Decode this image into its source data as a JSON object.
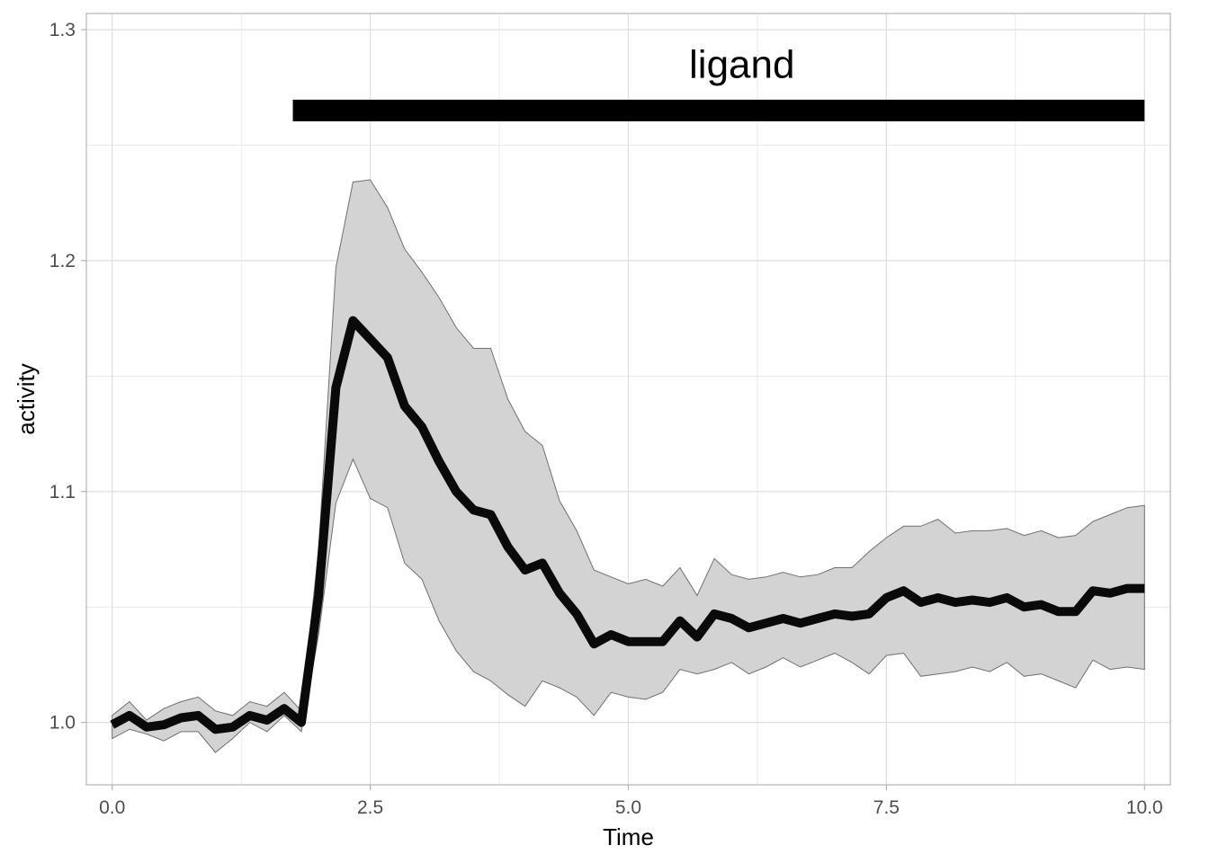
{
  "chart_data": {
    "type": "line",
    "title": "",
    "xlabel": "Time",
    "ylabel": "activity",
    "xlim": [
      -0.25,
      10.25
    ],
    "ylim": [
      0.973,
      1.307
    ],
    "x_ticks": [
      "0.0",
      "2.5",
      "5.0",
      "7.5",
      "10.0"
    ],
    "x_tick_values": [
      0,
      2.5,
      5,
      7.5,
      10
    ],
    "y_ticks": [
      "1.0",
      "1.1",
      "1.2",
      "1.3"
    ],
    "y_tick_values": [
      1.0,
      1.1,
      1.2,
      1.3
    ],
    "grid": true,
    "colors": {
      "line": "#0a0a0a",
      "ribbon": "#d3d3d3",
      "ribbon_edge": "#707070",
      "grid": "#dedede",
      "panel_border": "#b3b3b3"
    },
    "annotation": {
      "label": "ligand",
      "x": 6.1,
      "y": 1.285
    },
    "ligand_bar": {
      "x_start": 1.75,
      "x_end": 10.0,
      "y": 1.265
    },
    "series": [
      {
        "x": [
          0.0,
          0.167,
          0.333,
          0.5,
          0.667,
          0.833,
          1.0,
          1.167,
          1.333,
          1.5,
          1.667,
          1.833,
          2.0,
          2.167,
          2.333,
          2.5,
          2.667,
          2.833,
          3.0,
          3.167,
          3.333,
          3.5,
          3.667,
          3.833,
          4.0,
          4.167,
          4.333,
          4.5,
          4.667,
          4.833,
          5.0,
          5.167,
          5.333,
          5.5,
          5.667,
          5.833,
          6.0,
          6.167,
          6.333,
          6.5,
          6.667,
          6.833,
          7.0,
          7.167,
          7.333,
          7.5,
          7.667,
          7.833,
          8.0,
          8.167,
          8.333,
          8.5,
          8.667,
          8.833,
          9.0,
          9.167,
          9.333,
          9.5,
          9.667,
          9.833,
          10.0
        ],
        "y": [
          0.999,
          1.003,
          0.998,
          0.999,
          1.002,
          1.003,
          0.997,
          0.998,
          1.003,
          1.001,
          1.006,
          1.0,
          1.055,
          1.145,
          1.174,
          1.166,
          1.158,
          1.137,
          1.128,
          1.113,
          1.1,
          1.092,
          1.09,
          1.076,
          1.066,
          1.069,
          1.056,
          1.047,
          1.034,
          1.038,
          1.035,
          1.035,
          1.035,
          1.044,
          1.037,
          1.047,
          1.045,
          1.041,
          1.043,
          1.045,
          1.043,
          1.045,
          1.047,
          1.046,
          1.047,
          1.054,
          1.057,
          1.052,
          1.054,
          1.052,
          1.053,
          1.052,
          1.054,
          1.05,
          1.051,
          1.048,
          1.048,
          1.057,
          1.056,
          1.058,
          1.058
        ],
        "lower": [
          0.993,
          0.997,
          0.995,
          0.992,
          0.996,
          0.996,
          0.987,
          0.993,
          1.0,
          0.996,
          1.003,
          0.996,
          1.038,
          1.095,
          1.114,
          1.097,
          1.093,
          1.069,
          1.062,
          1.044,
          1.031,
          1.022,
          1.018,
          1.012,
          1.007,
          1.018,
          1.015,
          1.011,
          1.003,
          1.013,
          1.011,
          1.01,
          1.013,
          1.023,
          1.021,
          1.023,
          1.026,
          1.021,
          1.024,
          1.028,
          1.024,
          1.027,
          1.03,
          1.026,
          1.021,
          1.029,
          1.03,
          1.02,
          1.021,
          1.022,
          1.024,
          1.022,
          1.026,
          1.02,
          1.021,
          1.018,
          1.015,
          1.027,
          1.023,
          1.024,
          1.023
        ],
        "upper": [
          1.003,
          1.009,
          1.001,
          1.006,
          1.009,
          1.011,
          1.005,
          1.003,
          1.009,
          1.007,
          1.013,
          1.005,
          1.075,
          1.197,
          1.234,
          1.235,
          1.223,
          1.205,
          1.195,
          1.184,
          1.171,
          1.162,
          1.162,
          1.14,
          1.126,
          1.12,
          1.096,
          1.083,
          1.066,
          1.063,
          1.06,
          1.062,
          1.059,
          1.067,
          1.055,
          1.071,
          1.064,
          1.062,
          1.063,
          1.065,
          1.063,
          1.064,
          1.067,
          1.067,
          1.074,
          1.08,
          1.085,
          1.085,
          1.088,
          1.082,
          1.083,
          1.083,
          1.084,
          1.081,
          1.083,
          1.08,
          1.081,
          1.087,
          1.09,
          1.093,
          1.094
        ]
      }
    ]
  }
}
